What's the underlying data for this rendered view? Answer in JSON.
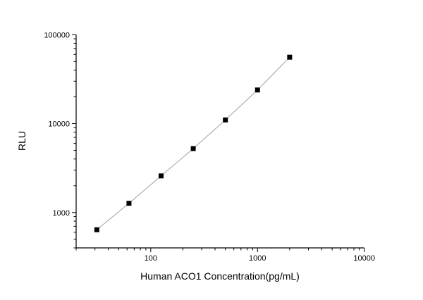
{
  "chart_data": {
    "type": "scatter",
    "title": "",
    "xlabel": "Human ACO1 Concentration(pg/mL)",
    "ylabel": "RLU",
    "x_scale": "log",
    "y_scale": "log",
    "xlim": [
      20,
      10000
    ],
    "ylim": [
      400,
      100000
    ],
    "x_ticks": [
      100,
      1000,
      10000
    ],
    "x_tick_labels": [
      "100",
      "1000",
      "10000"
    ],
    "y_ticks": [
      1000,
      10000,
      100000
    ],
    "y_tick_labels": [
      "1000",
      "10000",
      "100000"
    ],
    "grid": false,
    "legend": "none",
    "series": [
      {
        "x": [
          31.25,
          62.5,
          125,
          250,
          500,
          1000,
          2000
        ],
        "y": [
          640,
          1270,
          2580,
          5240,
          11000,
          23900,
          55900
        ],
        "marker": "square",
        "marker_color": "#000000",
        "line_color": "#a0a0a0",
        "fit_line": true
      }
    ]
  }
}
